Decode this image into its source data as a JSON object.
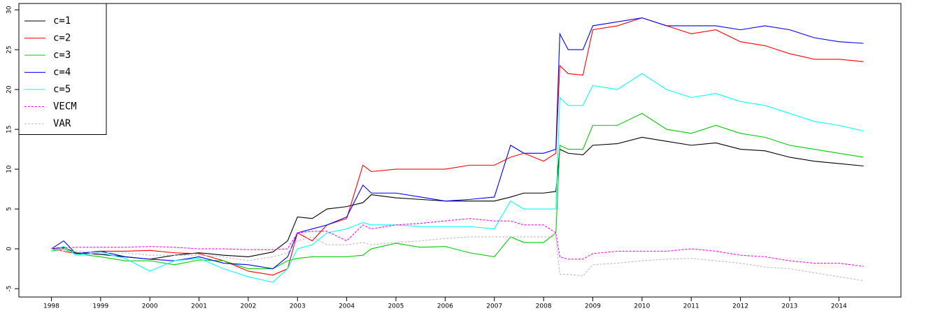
{
  "chart_data": {
    "type": "line",
    "legend": "upper left",
    "x": [
      1998.0,
      1998.25,
      1998.5,
      1999.0,
      1999.5,
      2000.0,
      2000.5,
      2001.0,
      2001.5,
      2002.0,
      2002.5,
      2002.8,
      2003.0,
      2003.3,
      2003.6,
      2004.0,
      2004.33,
      2004.5,
      2005.0,
      2005.5,
      2006.0,
      2006.5,
      2007.0,
      2007.33,
      2007.6,
      2008.0,
      2008.25,
      2008.33,
      2008.5,
      2008.8,
      2009.0,
      2009.5,
      2010.0,
      2010.5,
      2011.0,
      2011.5,
      2012.0,
      2012.5,
      2013.0,
      2013.5,
      2014.0,
      2014.5
    ],
    "xlim": [
      1997.34,
      2015.26
    ],
    "xticks": [
      1998,
      1999,
      2000,
      2001,
      2002,
      2003,
      2004,
      2005,
      2006,
      2007,
      2008,
      2009,
      2010,
      2011,
      2012,
      2013,
      2014
    ],
    "ylim": [
      -6.05,
      30.8
    ],
    "yticks": [
      -5,
      0,
      5,
      10,
      15,
      20,
      25,
      30
    ],
    "series": [
      {
        "name": "c=1",
        "color": "#000000",
        "linestyle": "solid",
        "values": [
          0,
          0.2,
          -0.5,
          -0.7,
          -1.0,
          -1.3,
          -0.8,
          -0.5,
          -0.8,
          -1.0,
          -0.4,
          1.0,
          4.0,
          3.8,
          5.0,
          5.3,
          5.8,
          6.8,
          6.4,
          6.2,
          6.0,
          6.0,
          6.0,
          6.5,
          7.0,
          7.0,
          7.2,
          12.5,
          12.0,
          11.8,
          13.0,
          13.2,
          14.0,
          13.5,
          13.0,
          13.3,
          12.5,
          12.3,
          11.5,
          11.0,
          10.7,
          10.4
        ]
      },
      {
        "name": "c=2",
        "color": "#ff0000",
        "linestyle": "solid",
        "values": [
          0,
          -0.3,
          -0.6,
          -0.3,
          -0.3,
          -0.2,
          -0.5,
          -0.6,
          -1.5,
          -2.8,
          -3.3,
          -2.5,
          2.0,
          1.0,
          3.0,
          3.8,
          10.5,
          9.7,
          10.0,
          10.0,
          10.0,
          10.5,
          10.5,
          11.5,
          12.0,
          11.0,
          12.0,
          23.0,
          22.0,
          21.8,
          27.5,
          28.0,
          29.0,
          28.0,
          27.0,
          27.5,
          26.0,
          25.5,
          24.5,
          23.8,
          23.8,
          23.5
        ]
      },
      {
        "name": "c=3",
        "color": "#00cd00",
        "linestyle": "solid",
        "values": [
          -0.3,
          0.0,
          -0.6,
          -1.0,
          -1.5,
          -1.5,
          -2.0,
          -1.4,
          -1.5,
          -2.5,
          -2.5,
          -1.5,
          -1.2,
          -1.0,
          -1.0,
          -1.0,
          -0.8,
          0.0,
          0.7,
          0.2,
          0.3,
          -0.5,
          -1.0,
          1.5,
          0.8,
          0.8,
          2.0,
          13.0,
          12.5,
          12.5,
          15.5,
          15.5,
          17.0,
          15.0,
          14.5,
          15.5,
          14.5,
          14.0,
          13.0,
          12.5,
          12.0,
          11.5
        ]
      },
      {
        "name": "c=4",
        "color": "#0000ff",
        "linestyle": "solid",
        "values": [
          0,
          1.0,
          -0.6,
          -0.3,
          -1.0,
          -1.3,
          -1.5,
          -1.0,
          -1.8,
          -2.0,
          -2.5,
          -1.0,
          2.0,
          2.5,
          3.0,
          4.0,
          8.0,
          7.0,
          7.0,
          6.5,
          6.0,
          6.2,
          6.5,
          13.0,
          12.0,
          12.0,
          12.5,
          27.0,
          25.0,
          25.0,
          28.0,
          28.5,
          29.0,
          28.0,
          28.0,
          28.0,
          27.5,
          28.0,
          27.5,
          26.5,
          26.0,
          25.8
        ]
      },
      {
        "name": "c=5",
        "color": "#00ffff",
        "linestyle": "solid",
        "values": [
          -0.3,
          0.3,
          -0.8,
          -0.5,
          -1.2,
          -2.8,
          -1.5,
          -1.2,
          -2.5,
          -3.5,
          -4.2,
          -2.5,
          0.0,
          0.5,
          2.0,
          2.5,
          3.3,
          3.0,
          3.0,
          2.8,
          2.8,
          2.8,
          2.5,
          6.0,
          5.0,
          5.0,
          5.0,
          19.0,
          18.0,
          18.0,
          20.5,
          20.0,
          22.0,
          20.0,
          19.0,
          19.5,
          18.5,
          18.0,
          17.0,
          16.0,
          15.5,
          14.8
        ]
      },
      {
        "name": "VECM",
        "color": "#ff00ff",
        "linestyle": "dashed",
        "values": [
          0,
          0.1,
          0.2,
          0.2,
          0.2,
          0.3,
          0.2,
          0.0,
          0.0,
          -0.1,
          -0.1,
          0.0,
          2.0,
          2.2,
          2.2,
          1.0,
          3.0,
          2.5,
          3.0,
          3.2,
          3.5,
          3.8,
          3.5,
          3.5,
          3.0,
          3.0,
          2.0,
          -1.0,
          -1.3,
          -1.3,
          -0.6,
          -0.3,
          -0.3,
          -0.3,
          0.0,
          -0.3,
          -0.8,
          -1.0,
          -1.5,
          -1.8,
          -1.8,
          -2.2
        ]
      },
      {
        "name": "VAR",
        "color": "#bebebe",
        "linestyle": "dashed",
        "values": [
          0,
          -0.3,
          -0.3,
          -0.5,
          -0.5,
          -0.8,
          -0.8,
          -0.8,
          -1.0,
          -1.5,
          -1.0,
          -0.5,
          1.0,
          1.5,
          0.5,
          0.5,
          0.8,
          0.5,
          0.8,
          1.0,
          1.3,
          1.5,
          1.5,
          1.5,
          1.5,
          1.5,
          1.5,
          -3.2,
          -3.2,
          -3.4,
          -2.0,
          -1.8,
          -1.5,
          -1.3,
          -1.2,
          -1.5,
          -1.8,
          -2.3,
          -2.5,
          -3.0,
          -3.5,
          -4.0
        ]
      }
    ]
  }
}
